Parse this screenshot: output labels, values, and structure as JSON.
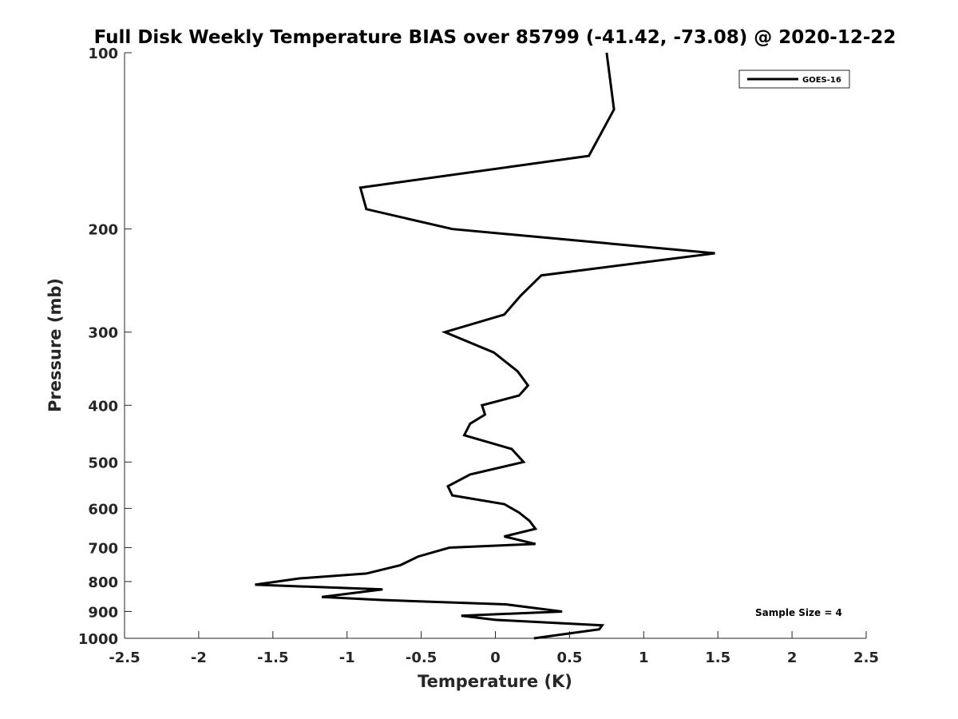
{
  "chart_data": {
    "type": "line",
    "title": "Full Disk Weekly Temperature BIAS over 85799 (-41.42, -73.08) @ 2020-12-22",
    "xlabel": "Temperature (K)",
    "ylabel": "Pressure (mb)",
    "xlim": [
      -2.5,
      2.5
    ],
    "ylim": [
      100,
      1000
    ],
    "y_scale": "log",
    "y_reversed": true,
    "xticks": [
      -2.5,
      -2,
      -1.5,
      -1,
      -0.5,
      0,
      0.5,
      1,
      1.5,
      2,
      2.5
    ],
    "xtick_labels": [
      "-2.5",
      "-2",
      "-1.5",
      "-1",
      "-0.5",
      "0",
      "0.5",
      "1",
      "1.5",
      "2",
      "2.5"
    ],
    "yticks": [
      100,
      200,
      300,
      400,
      500,
      600,
      700,
      800,
      900,
      1000
    ],
    "ytick_labels": [
      "100",
      "200",
      "300",
      "400",
      "500",
      "600",
      "700",
      "800",
      "900",
      "1000"
    ],
    "grid": false,
    "legend_position": "top-right",
    "annotation": "Sample Size = 4",
    "series": [
      {
        "name": "GOES-16",
        "color": "#000000",
        "points": [
          [
            0.75,
            100
          ],
          [
            0.8,
            125
          ],
          [
            0.63,
            150
          ],
          [
            -0.91,
            170
          ],
          [
            -0.87,
            185
          ],
          [
            -0.29,
            200
          ],
          [
            1.48,
            220
          ],
          [
            0.31,
            240
          ],
          [
            0.17,
            260
          ],
          [
            0.06,
            280
          ],
          [
            -0.34,
            300
          ],
          [
            -0.01,
            325
          ],
          [
            0.15,
            350
          ],
          [
            0.22,
            370
          ],
          [
            0.16,
            385
          ],
          [
            -0.09,
            400
          ],
          [
            -0.07,
            415
          ],
          [
            -0.17,
            430
          ],
          [
            -0.21,
            450
          ],
          [
            0.11,
            475
          ],
          [
            0.19,
            500
          ],
          [
            -0.17,
            525
          ],
          [
            -0.32,
            550
          ],
          [
            -0.29,
            570
          ],
          [
            0.06,
            590
          ],
          [
            0.16,
            610
          ],
          [
            0.23,
            630
          ],
          [
            0.27,
            650
          ],
          [
            0.06,
            670
          ],
          [
            0.27,
            690
          ],
          [
            -0.31,
            700
          ],
          [
            -0.52,
            725
          ],
          [
            -0.64,
            750
          ],
          [
            -0.87,
            775
          ],
          [
            -1.32,
            790
          ],
          [
            -1.62,
            810
          ],
          [
            -0.76,
            825
          ],
          [
            -1.17,
            850
          ],
          [
            -0.77,
            860
          ],
          [
            0.07,
            875
          ],
          [
            0.45,
            900
          ],
          [
            -0.23,
            915
          ],
          [
            0.0,
            930
          ],
          [
            0.72,
            950
          ],
          [
            0.7,
            965
          ],
          [
            0.26,
            1000
          ]
        ]
      }
    ]
  }
}
